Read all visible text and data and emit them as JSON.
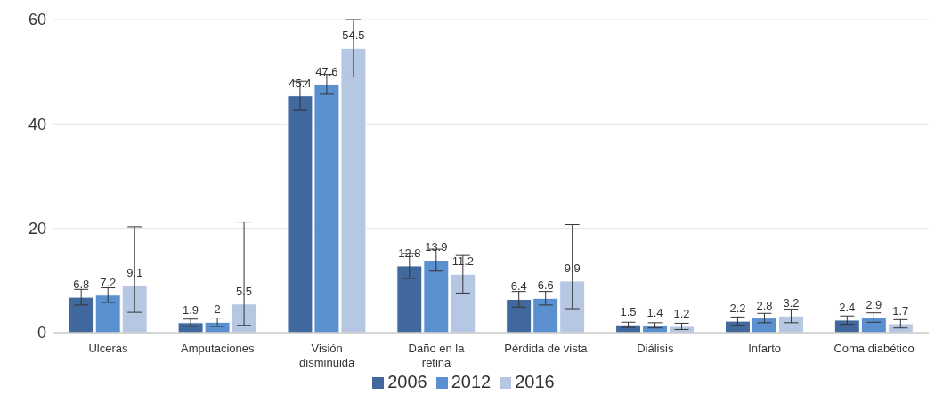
{
  "chart_data": {
    "type": "bar",
    "categories": [
      "Ulceras",
      "Amputaciones",
      "Visión disminuida",
      "Daño en la retina",
      "Pérdida de vista",
      "Diálisis",
      "Infarto",
      "Coma diabético"
    ],
    "series": [
      {
        "name": "2006",
        "color": "#42699e",
        "values": [
          6.8,
          1.9,
          45.4,
          12.8,
          6.4,
          1.5,
          2.2,
          2.4
        ],
        "errors": [
          1.5,
          0.7,
          2.8,
          2.4,
          1.5,
          0.5,
          0.8,
          0.8
        ]
      },
      {
        "name": "2012",
        "color": "#5a8fd0",
        "values": [
          7.2,
          2,
          47.6,
          13.9,
          6.6,
          1.4,
          2.8,
          2.9
        ],
        "errors": [
          1.4,
          0.8,
          1.9,
          2.1,
          1.3,
          0.5,
          0.9,
          0.9
        ]
      },
      {
        "name": "2016",
        "color": "#b6c7e3",
        "values": [
          9.1,
          5.5,
          54.5,
          11.2,
          9.9,
          1.2,
          3.2,
          1.7
        ],
        "errors": [
          [
            3.9,
            20.3
          ],
          [
            1.4,
            21.2
          ],
          5.5,
          3.6,
          [
            4.6,
            20.7
          ],
          0.6,
          1.3,
          0.8
        ]
      }
    ],
    "ylim": [
      0,
      60
    ],
    "yticks": [
      0,
      20,
      40,
      60
    ],
    "grid": "y",
    "legend": "bottom",
    "data_labels": true
  }
}
